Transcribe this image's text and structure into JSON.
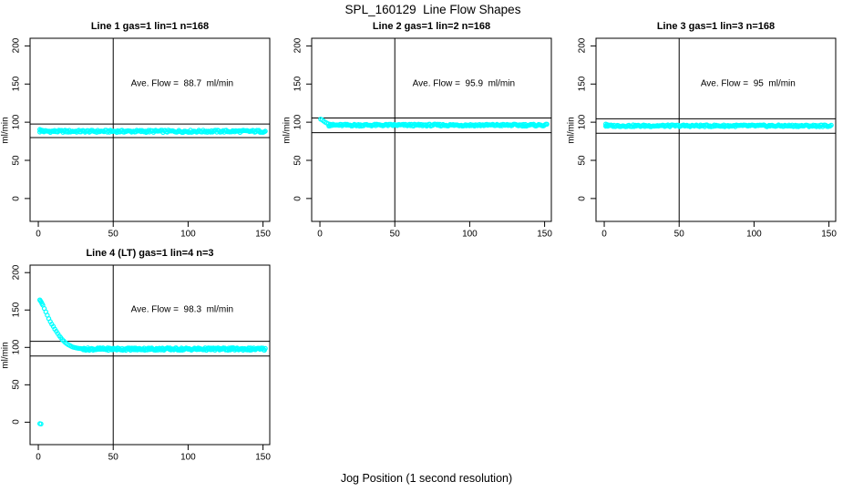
{
  "chart_data": {
    "type": "scatter",
    "suptitle": "SPL_160129  Line Flow Shapes",
    "xlabel": "Jog Position (1 second resolution)",
    "ylabel": "ml/min",
    "x_ticks": [
      0,
      50,
      100,
      150
    ],
    "y_ticks": [
      0,
      50,
      100,
      150,
      200
    ],
    "xlim": [
      -5.5,
      154.5
    ],
    "ylim": [
      -30,
      210
    ],
    "grid": false,
    "legend": "none",
    "point_color": "#00FFFF",
    "axis_color": "#000000",
    "vline_x": 50,
    "annotation_anchor": {
      "x": 96,
      "y": 150
    },
    "panels": [
      {
        "title": "Line 1 gas=1 lin=1 n=168",
        "annotation": "Ave. Flow =  88.7  ml/min",
        "ave_flow": 88.7,
        "n": 168,
        "hlines": [
          97.6,
          79.8
        ],
        "band": {
          "x_start": 1,
          "x_end": 151.5,
          "level": 88.1,
          "noise": 1.5,
          "n_points": 215
        },
        "lead_points": [
          [
            1,
            90.5
          ],
          [
            2,
            89.8
          ],
          [
            3,
            89.2
          ]
        ],
        "outliers": []
      },
      {
        "title": "Line 2 gas=1 lin=2 n=168",
        "annotation": "Ave. Flow =  95.9  ml/min",
        "ave_flow": 95.9,
        "n": 168,
        "hlines": [
          105.5,
          86.3
        ],
        "band": {
          "x_start": 6,
          "x_end": 151.5,
          "level": 96.2,
          "noise": 1.3,
          "n_points": 215
        },
        "lead_points": [
          [
            0.5,
            104
          ],
          [
            1.5,
            103
          ],
          [
            2.5,
            101.5
          ],
          [
            3.5,
            100
          ],
          [
            4.5,
            99
          ],
          [
            5.5,
            98
          ],
          [
            7,
            97.2
          ]
        ],
        "outliers": []
      },
      {
        "title": "Line 3 gas=1 lin=3 n=168",
        "annotation": "Ave. Flow =  95  ml/min",
        "ave_flow": 95,
        "n": 168,
        "hlines": [
          104.5,
          85.5
        ],
        "band": {
          "x_start": 1,
          "x_end": 151.5,
          "level": 95.3,
          "noise": 1.2,
          "n_points": 215
        },
        "lead_points": [
          [
            1,
            97.5
          ],
          [
            2,
            96.8
          ]
        ],
        "outliers": []
      },
      {
        "title": "Line 4 (LT) gas=1 lin=4 n=3",
        "annotation": "Ave. Flow =  98.3  ml/min",
        "ave_flow": 98.3,
        "n": 3,
        "hlines": [
          108.1,
          88.5
        ],
        "band": {
          "x_start": 30,
          "x_end": 151.5,
          "level": 97.8,
          "noise": 1.7,
          "n_points": 240
        },
        "lead_points": [
          [
            1,
            163.5
          ],
          [
            1.5,
            162
          ],
          [
            2,
            160.5
          ],
          [
            2.5,
            158.5
          ],
          [
            3,
            156.5
          ],
          [
            4,
            152
          ],
          [
            5,
            147.5
          ],
          [
            6,
            143
          ],
          [
            7,
            138.5
          ],
          [
            8,
            134.5
          ],
          [
            9,
            131
          ],
          [
            10,
            128
          ],
          [
            11,
            124.5
          ],
          [
            12,
            121.5
          ],
          [
            13,
            118.5
          ],
          [
            14,
            115.5
          ],
          [
            15,
            113
          ],
          [
            16,
            110.5
          ],
          [
            17,
            108.5
          ],
          [
            18,
            106.5
          ],
          [
            19,
            105
          ],
          [
            20,
            103.5
          ],
          [
            21,
            102.5
          ],
          [
            22,
            101.5
          ],
          [
            23,
            100.5
          ],
          [
            24,
            100
          ],
          [
            25,
            99.5
          ],
          [
            26,
            99
          ],
          [
            27,
            98.8
          ],
          [
            28,
            98.5
          ],
          [
            29,
            98.3
          ],
          [
            30,
            98
          ]
        ],
        "outliers": [
          [
            1,
            -2
          ],
          [
            1.8,
            -2.3
          ]
        ]
      }
    ]
  }
}
